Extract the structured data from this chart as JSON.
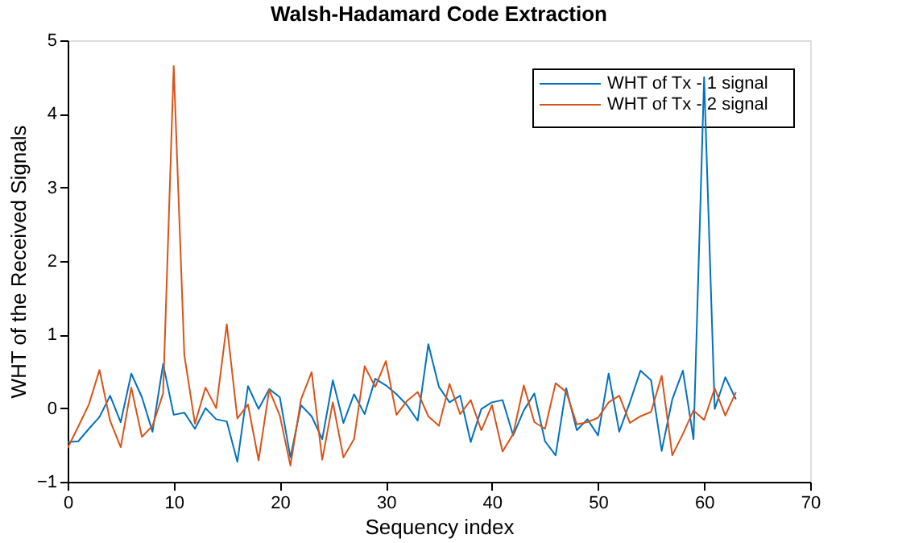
{
  "chart_data": {
    "type": "line",
    "title": "Walsh-Hadamard Code Extraction",
    "xlabel": "Sequency index",
    "ylabel": "WHT of the Received Signals",
    "x": [
      0,
      1,
      2,
      3,
      4,
      5,
      6,
      7,
      8,
      9,
      10,
      11,
      12,
      13,
      14,
      15,
      16,
      17,
      18,
      19,
      20,
      21,
      22,
      23,
      24,
      25,
      26,
      27,
      28,
      29,
      30,
      31,
      32,
      33,
      34,
      35,
      36,
      37,
      38,
      39,
      40,
      41,
      42,
      43,
      44,
      45,
      46,
      47,
      48,
      49,
      50,
      51,
      52,
      53,
      54,
      55,
      56,
      57,
      58,
      59,
      60,
      61,
      62,
      63
    ],
    "series": [
      {
        "name": "WHT of Tx - 1 signal",
        "color": "#0072bd",
        "values": [
          -0.46,
          -0.45,
          -0.28,
          -0.12,
          0.17,
          -0.19,
          0.47,
          0.15,
          -0.32,
          0.6,
          -0.09,
          -0.06,
          -0.28,
          0.0,
          -0.15,
          -0.18,
          -0.73,
          0.3,
          -0.01,
          0.26,
          0.15,
          -0.67,
          0.04,
          -0.11,
          -0.42,
          0.38,
          -0.2,
          0.19,
          -0.08,
          0.4,
          0.31,
          0.19,
          0.04,
          -0.17,
          0.87,
          0.29,
          0.08,
          0.17,
          -0.46,
          -0.01,
          0.08,
          0.11,
          -0.37,
          -0.03,
          0.2,
          -0.45,
          -0.64,
          0.27,
          -0.3,
          -0.15,
          -0.37,
          0.47,
          -0.32,
          0.08,
          0.51,
          0.38,
          -0.58,
          0.12,
          0.51,
          -0.42,
          4.5,
          -0.01,
          0.42,
          0.12
        ]
      },
      {
        "name": "WHT of Tx - 2 signal",
        "color": "#d95319",
        "values": [
          -0.54,
          -0.25,
          0.05,
          0.52,
          -0.17,
          -0.53,
          0.28,
          -0.39,
          -0.24,
          0.2,
          4.65,
          0.72,
          -0.21,
          0.28,
          0.0,
          1.14,
          -0.14,
          0.05,
          -0.71,
          0.25,
          -0.1,
          -0.78,
          0.12,
          0.49,
          -0.7,
          0.08,
          -0.67,
          -0.42,
          0.57,
          0.29,
          0.64,
          -0.09,
          0.1,
          0.22,
          -0.11,
          -0.24,
          0.33,
          -0.08,
          0.11,
          -0.3,
          0.04,
          -0.59,
          -0.35,
          0.31,
          -0.19,
          -0.28,
          0.34,
          0.22,
          -0.22,
          -0.19,
          -0.13,
          0.08,
          0.17,
          -0.2,
          -0.11,
          -0.05,
          0.44,
          -0.64,
          -0.35,
          -0.03,
          -0.16,
          0.27,
          -0.1,
          0.22
        ]
      }
    ],
    "xlim": [
      0,
      70
    ],
    "xticks": [
      0,
      10,
      20,
      30,
      40,
      50,
      60,
      70
    ],
    "ylim": [
      -1,
      5
    ],
    "yticks": [
      -1,
      0,
      1,
      2,
      3,
      4,
      5
    ],
    "grid": false,
    "legend": "top right",
    "marker": "none",
    "line_style": "solid"
  }
}
